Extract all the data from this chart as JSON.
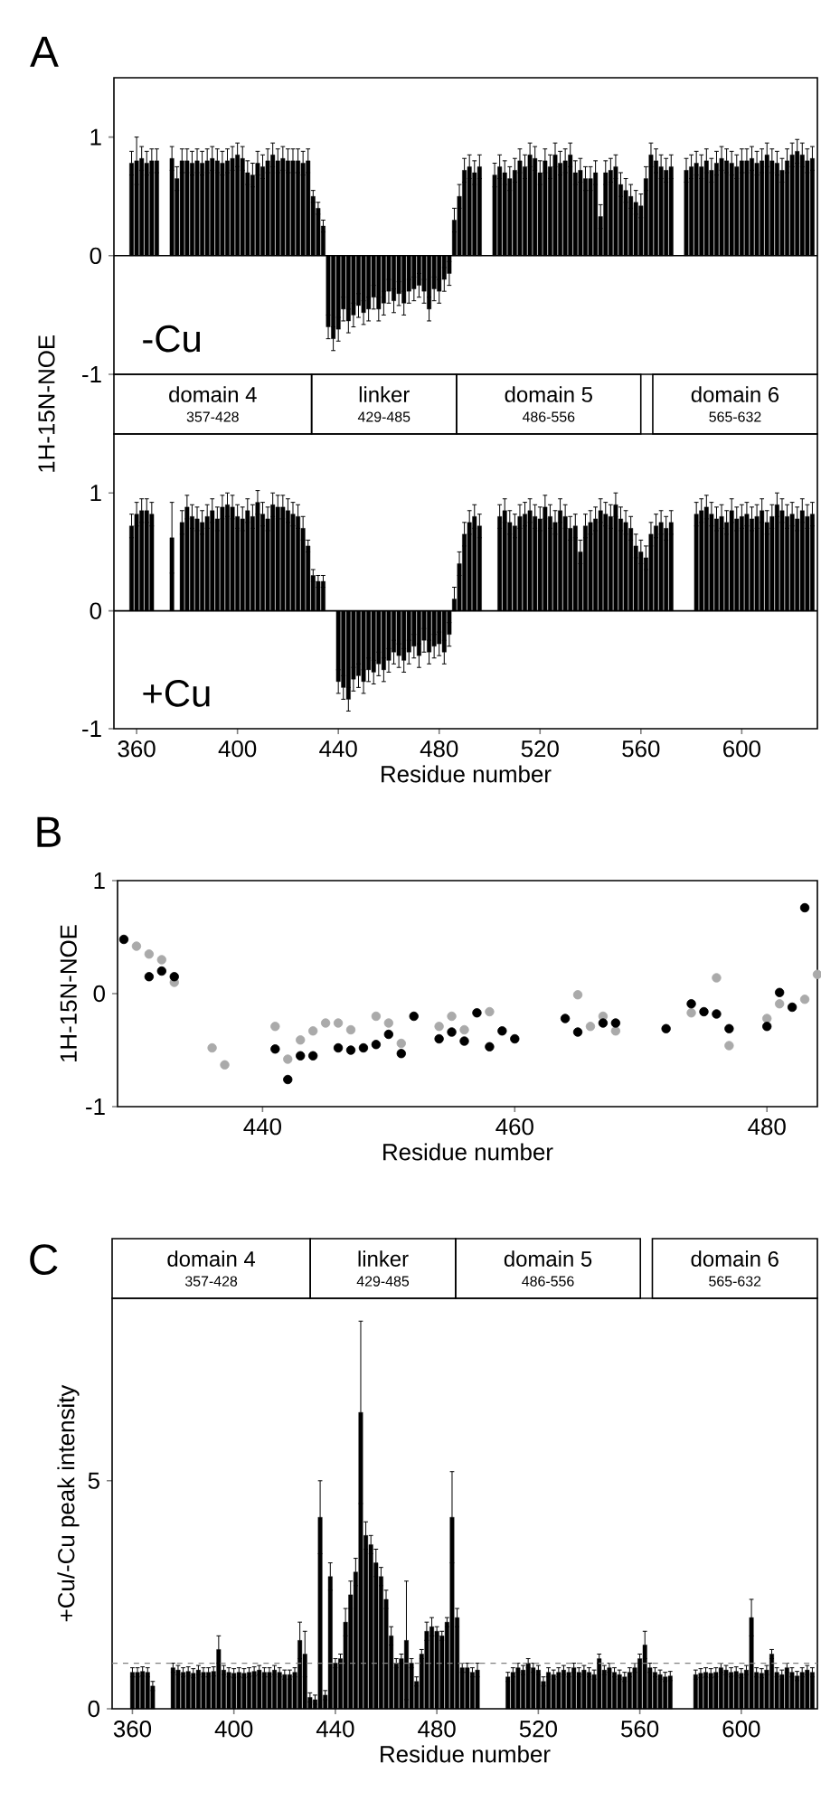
{
  "chart_data": [
    {
      "type": "bar",
      "title": "A",
      "ylabel": "1H-15N-NOE",
      "color": "#000000",
      "xlim": [
        351,
        630
      ],
      "ylim": [
        -1,
        1.5
      ],
      "yticks": [
        -1,
        0,
        1
      ],
      "tick_labels": "y",
      "annotations": [
        "-Cu",
        "domain 4",
        "357-428",
        "linker",
        "429-485",
        "domain 5",
        "486-556",
        "domain 6",
        "565-632"
      ],
      "x": [
        358,
        360,
        362,
        364,
        366,
        368,
        370,
        372,
        374,
        376,
        378,
        380,
        382,
        384,
        386,
        388,
        390,
        392,
        394,
        396,
        398,
        400,
        402,
        404,
        406,
        408,
        410,
        412,
        414,
        416,
        418,
        420,
        422,
        424,
        426,
        428,
        430,
        432,
        434,
        436,
        438,
        440,
        442,
        444,
        446,
        448,
        450,
        452,
        454,
        456,
        458,
        460,
        462,
        464,
        466,
        468,
        470,
        472,
        474,
        476,
        478,
        480,
        482,
        484,
        486,
        488,
        490,
        492,
        494,
        496,
        498,
        500,
        502,
        504,
        506,
        508,
        510,
        512,
        514,
        516,
        518,
        520,
        522,
        524,
        526,
        528,
        530,
        532,
        534,
        536,
        538,
        540,
        542,
        544,
        546,
        548,
        550,
        552,
        554,
        556,
        558,
        560,
        562,
        564,
        566,
        568,
        570,
        572,
        574,
        576,
        578,
        580,
        582,
        584,
        586,
        588,
        590,
        592,
        594,
        596,
        598,
        600,
        602,
        604,
        606,
        608,
        610,
        612,
        614,
        616,
        618,
        620,
        622,
        624,
        626,
        628
      ],
      "values": [
        0.78,
        0.8,
        0.82,
        0.78,
        0.8,
        0.8,
        null,
        null,
        0.82,
        0.65,
        0.8,
        0.8,
        0.78,
        0.8,
        0.78,
        0.8,
        0.82,
        0.8,
        0.78,
        0.8,
        0.82,
        0.85,
        0.82,
        0.7,
        0.68,
        0.78,
        0.75,
        0.8,
        0.85,
        0.8,
        0.82,
        0.8,
        0.8,
        0.8,
        0.78,
        0.8,
        0.5,
        0.4,
        0.25,
        -0.6,
        -0.7,
        -0.62,
        -0.45,
        -0.55,
        -0.5,
        -0.42,
        -0.48,
        -0.45,
        -0.35,
        -0.45,
        -0.4,
        -0.3,
        -0.38,
        -0.32,
        -0.4,
        -0.3,
        -0.28,
        -0.25,
        -0.3,
        -0.45,
        -0.28,
        -0.3,
        -0.2,
        -0.15,
        0.3,
        0.5,
        0.72,
        0.75,
        0.7,
        0.75,
        null,
        null,
        0.68,
        0.75,
        0.7,
        0.65,
        0.72,
        0.8,
        0.75,
        0.85,
        0.82,
        0.7,
        0.8,
        0.75,
        0.85,
        0.78,
        0.8,
        0.85,
        0.7,
        0.72,
        0.65,
        0.65,
        0.7,
        0.33,
        0.7,
        0.72,
        0.75,
        0.6,
        0.55,
        0.5,
        0.45,
        0.42,
        0.65,
        0.85,
        0.8,
        0.75,
        0.72,
        0.75,
        null,
        null,
        0.72,
        0.75,
        0.78,
        0.75,
        0.8,
        0.72,
        0.78,
        0.82,
        0.8,
        0.78,
        0.75,
        0.8,
        0.8,
        0.82,
        0.78,
        0.8,
        0.85,
        0.8,
        0.78,
        0.72,
        0.8,
        0.85,
        0.88,
        0.85,
        0.8,
        0.82
      ],
      "errors": [
        0.1,
        0.2,
        0.1,
        0.1,
        0.1,
        0.1,
        null,
        null,
        0.1,
        0.1,
        0.1,
        0.1,
        0.1,
        0.1,
        0.1,
        0.1,
        0.1,
        0.1,
        0.1,
        0.1,
        0.1,
        0.1,
        0.1,
        0.1,
        0.1,
        0.1,
        0.1,
        0.1,
        0.1,
        0.1,
        0.1,
        0.1,
        0.1,
        0.1,
        0.1,
        0.1,
        0.05,
        0.05,
        0.05,
        0.1,
        0.1,
        0.1,
        0.1,
        0.1,
        0.1,
        0.1,
        0.1,
        0.1,
        0.1,
        0.1,
        0.1,
        0.1,
        0.1,
        0.1,
        0.1,
        0.1,
        0.1,
        0.1,
        0.1,
        0.1,
        0.1,
        0.1,
        0.1,
        0.1,
        0.1,
        0.1,
        0.1,
        0.1,
        0.1,
        0.1,
        null,
        null,
        0.1,
        0.1,
        0.1,
        0.1,
        0.1,
        0.1,
        0.1,
        0.1,
        0.1,
        0.1,
        0.1,
        0.1,
        0.1,
        0.1,
        0.1,
        0.1,
        0.1,
        0.1,
        0.1,
        0.1,
        0.1,
        0.1,
        0.1,
        0.1,
        0.1,
        0.1,
        0.1,
        0.1,
        0.1,
        0.1,
        0.1,
        0.1,
        0.1,
        0.1,
        0.1,
        0.1,
        null,
        null,
        0.1,
        0.1,
        0.1,
        0.1,
        0.1,
        0.1,
        0.1,
        0.1,
        0.1,
        0.1,
        0.1,
        0.1,
        0.1,
        0.1,
        0.1,
        0.1,
        0.1,
        0.1,
        0.1,
        0.1,
        0.1,
        0.1,
        0.1,
        0.1,
        0.1,
        0.1
      ]
    },
    {
      "type": "bar",
      "xlabel": "Residue number",
      "color": "#000000",
      "xlim": [
        351,
        630
      ],
      "ylim": [
        -1,
        1.5
      ],
      "xticks": [
        360,
        400,
        440,
        480,
        520,
        560,
        600
      ],
      "yticks": [
        -1,
        0,
        1
      ],
      "annotations": [
        "+Cu"
      ],
      "x": [
        358,
        360,
        362,
        364,
        366,
        368,
        370,
        372,
        374,
        376,
        378,
        380,
        382,
        384,
        386,
        388,
        390,
        392,
        394,
        396,
        398,
        400,
        402,
        404,
        406,
        408,
        410,
        412,
        414,
        416,
        418,
        420,
        422,
        424,
        426,
        428,
        430,
        432,
        434,
        436,
        438,
        440,
        442,
        444,
        446,
        448,
        450,
        452,
        454,
        456,
        458,
        460,
        462,
        464,
        466,
        468,
        470,
        472,
        474,
        476,
        478,
        480,
        482,
        484,
        486,
        488,
        490,
        492,
        494,
        496,
        498,
        500,
        502,
        504,
        506,
        508,
        510,
        512,
        514,
        516,
        518,
        520,
        522,
        524,
        526,
        528,
        530,
        532,
        534,
        536,
        538,
        540,
        542,
        544,
        546,
        548,
        550,
        552,
        554,
        556,
        558,
        560,
        562,
        564,
        566,
        568,
        570,
        572,
        574,
        576,
        578,
        580,
        582,
        584,
        586,
        588,
        590,
        592,
        594,
        596,
        598,
        600,
        602,
        604,
        606,
        608,
        610,
        612,
        614,
        616,
        618,
        620,
        622,
        624,
        626,
        628
      ],
      "values": [
        0.72,
        0.82,
        0.85,
        0.85,
        0.82,
        null,
        null,
        null,
        0.62,
        null,
        0.75,
        0.88,
        0.8,
        0.78,
        0.75,
        0.8,
        0.85,
        0.78,
        0.88,
        0.9,
        0.88,
        0.8,
        0.78,
        0.85,
        0.8,
        0.92,
        0.82,
        0.78,
        0.9,
        0.88,
        0.88,
        0.85,
        0.82,
        0.8,
        0.7,
        0.55,
        0.3,
        0.25,
        0.25,
        null,
        null,
        -0.6,
        -0.65,
        -0.75,
        -0.58,
        -0.55,
        -0.6,
        -0.5,
        -0.52,
        -0.45,
        -0.5,
        -0.42,
        -0.35,
        -0.38,
        -0.42,
        -0.35,
        -0.3,
        -0.38,
        -0.25,
        -0.35,
        -0.3,
        -0.28,
        -0.35,
        -0.2,
        0.1,
        0.4,
        0.65,
        0.75,
        0.8,
        0.72,
        null,
        null,
        null,
        0.8,
        0.85,
        0.75,
        0.72,
        0.8,
        0.82,
        0.85,
        0.8,
        0.78,
        0.88,
        0.8,
        0.75,
        0.85,
        0.8,
        0.7,
        0.72,
        0.5,
        0.72,
        0.75,
        0.78,
        0.85,
        0.82,
        0.8,
        0.9,
        0.78,
        0.75,
        0.7,
        0.55,
        0.5,
        0.45,
        0.65,
        0.72,
        0.75,
        0.7,
        0.75,
        null,
        null,
        null,
        null,
        0.82,
        0.85,
        0.88,
        0.82,
        0.78,
        0.8,
        0.75,
        0.85,
        0.78,
        0.8,
        0.82,
        0.78,
        0.8,
        0.85,
        0.75,
        0.8,
        0.9,
        0.85,
        0.8,
        0.82,
        0.78,
        0.85,
        0.8,
        0.82
      ],
      "errors": [
        0.1,
        0.1,
        0.1,
        0.1,
        0.1,
        null,
        null,
        null,
        0.3,
        null,
        0.1,
        0.1,
        0.1,
        0.1,
        0.1,
        0.1,
        0.1,
        0.1,
        0.1,
        0.1,
        0.1,
        0.1,
        0.1,
        0.1,
        0.1,
        0.1,
        0.1,
        0.1,
        0.1,
        0.1,
        0.1,
        0.1,
        0.1,
        0.1,
        0.1,
        0.05,
        0.05,
        0.05,
        0.05,
        null,
        null,
        0.1,
        0.1,
        0.1,
        0.1,
        0.1,
        0.1,
        0.1,
        0.1,
        0.1,
        0.1,
        0.1,
        0.1,
        0.1,
        0.1,
        0.1,
        0.1,
        0.1,
        0.1,
        0.1,
        0.1,
        0.1,
        0.1,
        0.1,
        0.1,
        0.1,
        0.1,
        0.1,
        0.1,
        0.1,
        null,
        null,
        null,
        0.1,
        0.1,
        0.1,
        0.1,
        0.1,
        0.1,
        0.1,
        0.1,
        0.1,
        0.1,
        0.1,
        0.1,
        0.1,
        0.1,
        0.1,
        0.1,
        0.1,
        0.1,
        0.1,
        0.1,
        0.1,
        0.1,
        0.1,
        0.1,
        0.1,
        0.1,
        0.1,
        0.1,
        0.1,
        0.1,
        0.1,
        0.1,
        0.1,
        0.1,
        0.1,
        null,
        null,
        null,
        null,
        0.1,
        0.1,
        0.1,
        0.1,
        0.1,
        0.1,
        0.1,
        0.1,
        0.1,
        0.1,
        0.1,
        0.1,
        0.1,
        0.1,
        0.1,
        0.1,
        0.1,
        0.1,
        0.1,
        0.1,
        0.1,
        0.1,
        0.1,
        0.1
      ]
    },
    {
      "type": "scatter",
      "title": "B",
      "xlabel": "Residue number",
      "ylabel": "1H-15N-NOE",
      "marker": "circle",
      "xlim": [
        428.5,
        484
      ],
      "ylim": [
        -1,
        1
      ],
      "xticks": [
        440,
        460,
        480
      ],
      "yticks": [
        -1,
        0,
        1
      ],
      "series": [
        {
          "color": "#aaaaaa",
          "x": [
            430,
            431,
            432,
            433,
            436,
            437,
            441,
            442,
            443,
            444,
            445,
            446,
            447,
            449,
            450,
            451,
            454,
            455,
            456,
            458,
            465,
            466,
            467,
            468,
            474,
            476,
            477,
            480,
            481,
            483,
            484
          ],
          "values": [
            0.42,
            0.35,
            0.3,
            0.1,
            -0.48,
            -0.63,
            -0.29,
            -0.58,
            -0.41,
            -0.33,
            -0.26,
            -0.26,
            -0.32,
            -0.2,
            -0.26,
            -0.44,
            -0.29,
            -0.2,
            -0.32,
            -0.16,
            -0.01,
            -0.29,
            -0.2,
            -0.33,
            -0.17,
            0.14,
            -0.46,
            -0.22,
            -0.09,
            -0.05,
            0.17
          ]
        },
        {
          "color": "#000000",
          "x": [
            429,
            431,
            432,
            433,
            441,
            442,
            443,
            444,
            446,
            447,
            448,
            449,
            450,
            451,
            452,
            454,
            455,
            456,
            457,
            458,
            459,
            460,
            464,
            465,
            467,
            468,
            472,
            474,
            475,
            476,
            477,
            480,
            481,
            482,
            483
          ],
          "values": [
            0.48,
            0.15,
            0.2,
            0.15,
            -0.49,
            -0.76,
            -0.55,
            -0.55,
            -0.48,
            -0.5,
            -0.48,
            -0.45,
            -0.36,
            -0.53,
            -0.2,
            -0.4,
            -0.34,
            -0.42,
            -0.17,
            -0.47,
            -0.33,
            -0.4,
            -0.22,
            -0.34,
            -0.26,
            -0.26,
            -0.31,
            -0.09,
            -0.16,
            -0.18,
            -0.31,
            -0.29,
            0.01,
            -0.12,
            0.76
          ]
        }
      ]
    },
    {
      "type": "bar",
      "title": "C",
      "xlabel": "Residue number",
      "ylabel": "+Cu/-Cu peak intensity",
      "color": "#000000",
      "xlim": [
        352,
        630
      ],
      "ylim": [
        0,
        9
      ],
      "xticks": [
        360,
        400,
        440,
        480,
        520,
        560,
        600
      ],
      "yticks": [
        0,
        5
      ],
      "ref_lines": [
        {
          "axis": "y",
          "value": 1,
          "color": "#808080",
          "line_style": "dashed"
        }
      ],
      "annotations": [
        "domain 4",
        "357-428",
        "linker",
        "429-485",
        "domain 5",
        "486-556",
        "domain 6",
        "565-632"
      ],
      "x": [
        360,
        362,
        364,
        366,
        368,
        370,
        372,
        374,
        376,
        378,
        380,
        382,
        384,
        386,
        388,
        390,
        392,
        394,
        396,
        398,
        400,
        402,
        404,
        406,
        408,
        410,
        412,
        414,
        416,
        418,
        420,
        422,
        424,
        426,
        428,
        430,
        432,
        434,
        436,
        438,
        440,
        442,
        444,
        446,
        448,
        450,
        452,
        454,
        456,
        458,
        460,
        462,
        464,
        466,
        468,
        470,
        472,
        474,
        476,
        478,
        480,
        482,
        484,
        486,
        488,
        490,
        492,
        494,
        496,
        498,
        500,
        502,
        504,
        506,
        508,
        510,
        512,
        514,
        516,
        518,
        520,
        522,
        524,
        526,
        528,
        530,
        532,
        534,
        536,
        538,
        540,
        542,
        544,
        546,
        548,
        550,
        552,
        554,
        556,
        558,
        560,
        562,
        564,
        566,
        568,
        570,
        572,
        574,
        576,
        578,
        580,
        582,
        584,
        586,
        588,
        590,
        592,
        594,
        596,
        598,
        600,
        602,
        604,
        606,
        608,
        610,
        612,
        614,
        616,
        618,
        620,
        622,
        624,
        626,
        628
      ],
      "values": [
        0.8,
        0.8,
        0.82,
        0.8,
        0.5,
        null,
        null,
        null,
        0.9,
        0.85,
        0.8,
        0.82,
        0.78,
        0.85,
        0.8,
        0.8,
        0.82,
        1.3,
        0.85,
        0.8,
        0.78,
        0.8,
        0.78,
        0.8,
        0.82,
        0.85,
        0.8,
        0.8,
        0.85,
        0.8,
        0.75,
        0.75,
        0.8,
        1.5,
        1.2,
        0.25,
        0.2,
        4.2,
        0.3,
        2.9,
        1.0,
        1.1,
        1.9,
        2.5,
        3.0,
        6.5,
        3.8,
        3.6,
        3.2,
        2.9,
        2.4,
        1.6,
        1.0,
        1.1,
        1.5,
        1.0,
        0.6,
        1.2,
        1.7,
        1.8,
        1.7,
        1.6,
        1.9,
        4.2,
        2.0,
        0.9,
        0.9,
        0.8,
        0.85,
        null,
        null,
        null,
        null,
        null,
        0.7,
        0.8,
        0.9,
        0.85,
        1.0,
        0.9,
        0.85,
        0.6,
        0.8,
        0.75,
        0.8,
        0.85,
        0.8,
        0.9,
        0.8,
        0.85,
        0.8,
        0.75,
        1.1,
        0.85,
        0.9,
        0.8,
        0.75,
        0.7,
        0.8,
        0.9,
        1.1,
        1.4,
        0.9,
        0.8,
        0.75,
        0.7,
        0.72,
        null,
        null,
        null,
        null,
        0.75,
        0.78,
        0.8,
        0.78,
        0.8,
        0.9,
        0.85,
        0.8,
        0.82,
        0.78,
        0.85,
        2.0,
        0.8,
        0.78,
        0.85,
        1.2,
        0.8,
        0.75,
        0.9,
        0.8,
        0.72,
        0.8,
        0.85,
        0.8
      ],
      "errors": [
        0.1,
        0.1,
        0.1,
        0.1,
        0.1,
        null,
        null,
        null,
        0.1,
        0.1,
        0.1,
        0.1,
        0.1,
        0.1,
        0.1,
        0.1,
        0.1,
        0.3,
        0.1,
        0.1,
        0.1,
        0.1,
        0.1,
        0.1,
        0.1,
        0.1,
        0.1,
        0.1,
        0.1,
        0.1,
        0.1,
        0.1,
        0.1,
        0.4,
        0.5,
        0.1,
        0.1,
        0.8,
        0.1,
        0.3,
        0.1,
        0.1,
        0.3,
        0.3,
        0.3,
        2.0,
        0.3,
        0.2,
        0.3,
        0.2,
        0.2,
        0.2,
        0.1,
        0.1,
        1.3,
        0.1,
        0.1,
        0.1,
        0.2,
        0.2,
        0.1,
        0.1,
        0.1,
        1.0,
        0.2,
        0.1,
        0.1,
        0.1,
        0.15,
        null,
        null,
        null,
        null,
        null,
        0.1,
        0.1,
        0.1,
        0.1,
        0.1,
        0.1,
        0.1,
        0.1,
        0.1,
        0.1,
        0.1,
        0.1,
        0.1,
        0.1,
        0.1,
        0.1,
        0.1,
        0.1,
        0.1,
        0.1,
        0.1,
        0.1,
        0.1,
        0.1,
        0.1,
        0.1,
        0.1,
        0.3,
        0.1,
        0.1,
        0.1,
        0.1,
        0.1,
        null,
        null,
        null,
        null,
        0.1,
        0.1,
        0.1,
        0.1,
        0.1,
        0.1,
        0.1,
        0.1,
        0.1,
        0.1,
        0.1,
        0.4,
        0.1,
        0.1,
        0.1,
        0.1,
        0.1,
        0.1,
        0.1,
        0.1,
        0.1,
        0.1,
        0.1,
        0.1
      ]
    }
  ]
}
